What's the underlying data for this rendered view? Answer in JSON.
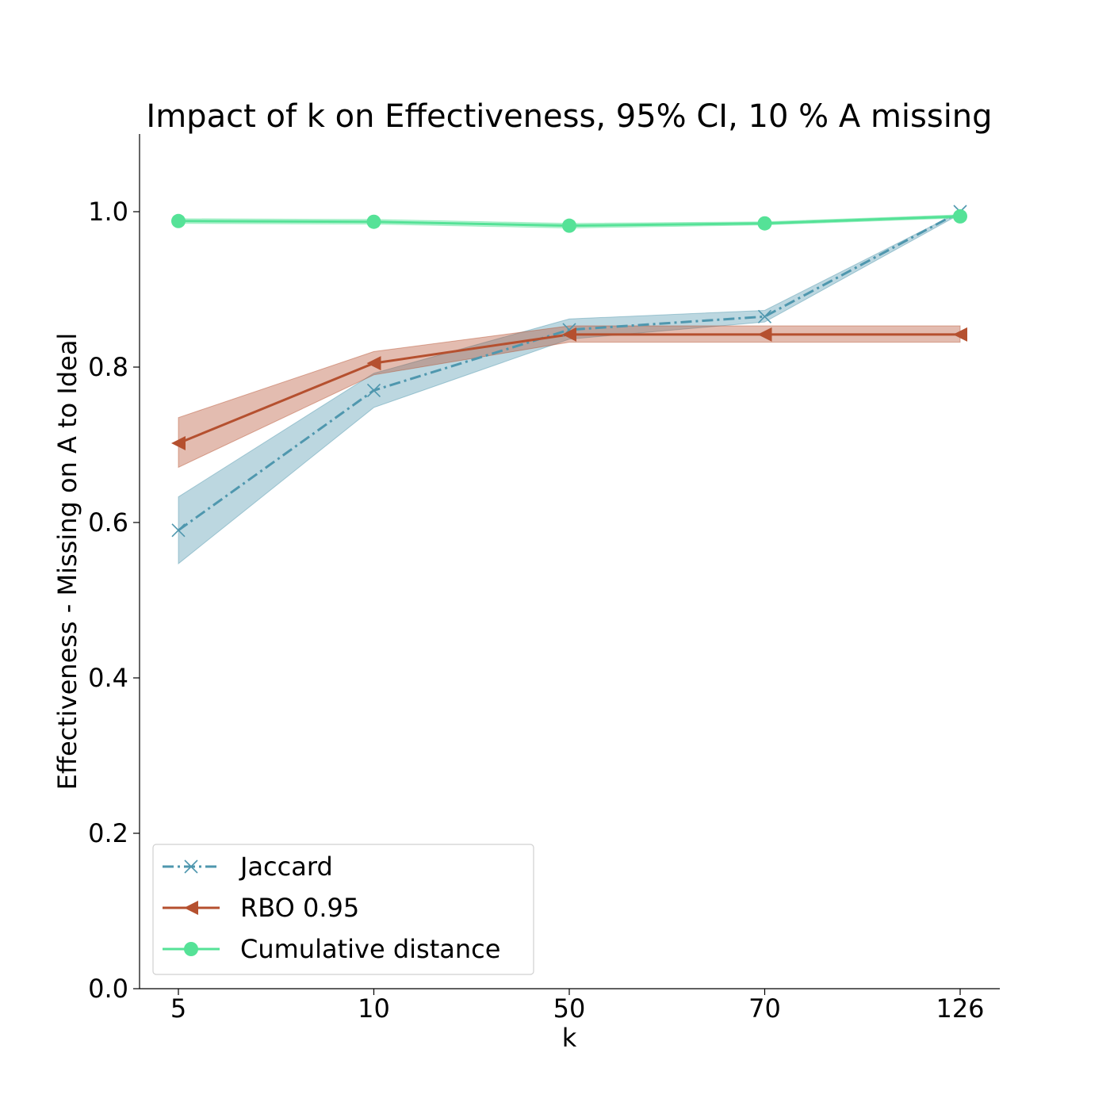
{
  "chart_data": {
    "type": "line",
    "title": "Impact of k on Effectiveness, 95% CI, 10 % A missing",
    "xlabel": "k",
    "ylabel": "Effectiveness - Missing on A to Ideal",
    "categories": [
      "5",
      "10",
      "50",
      "70",
      "126"
    ],
    "ylim": [
      0,
      1.1
    ],
    "yticks": [
      "0.0",
      "0.2",
      "0.4",
      "0.6",
      "0.8",
      "1.0"
    ],
    "grid": false,
    "legend_position": "lower-left",
    "series": [
      {
        "name": "Jaccard",
        "color": "#4f97ae",
        "marker": "x",
        "line_style": "dash-dot",
        "values": [
          0.59,
          0.77,
          0.848,
          0.865,
          1.0
        ],
        "ci_low": [
          0.547,
          0.748,
          0.836,
          0.858,
          0.997
        ],
        "ci_high": [
          0.633,
          0.792,
          0.862,
          0.873,
          1.0
        ]
      },
      {
        "name": "RBO 0.95",
        "color": "#b5502f",
        "marker": "triangle-left",
        "line_style": "solid",
        "values": [
          0.702,
          0.805,
          0.842,
          0.842,
          0.842
        ],
        "ci_low": [
          0.671,
          0.79,
          0.832,
          0.832,
          0.832
        ],
        "ci_high": [
          0.735,
          0.82,
          0.853,
          0.853,
          0.853
        ]
      },
      {
        "name": "Cumulative distance",
        "color": "#55e297",
        "marker": "circle",
        "line_style": "solid",
        "values": [
          0.988,
          0.987,
          0.982,
          0.985,
          0.994
        ],
        "ci_low": [
          0.985,
          0.984,
          0.979,
          0.983,
          0.992
        ],
        "ci_high": [
          0.991,
          0.99,
          0.985,
          0.987,
          0.996
        ]
      }
    ]
  }
}
